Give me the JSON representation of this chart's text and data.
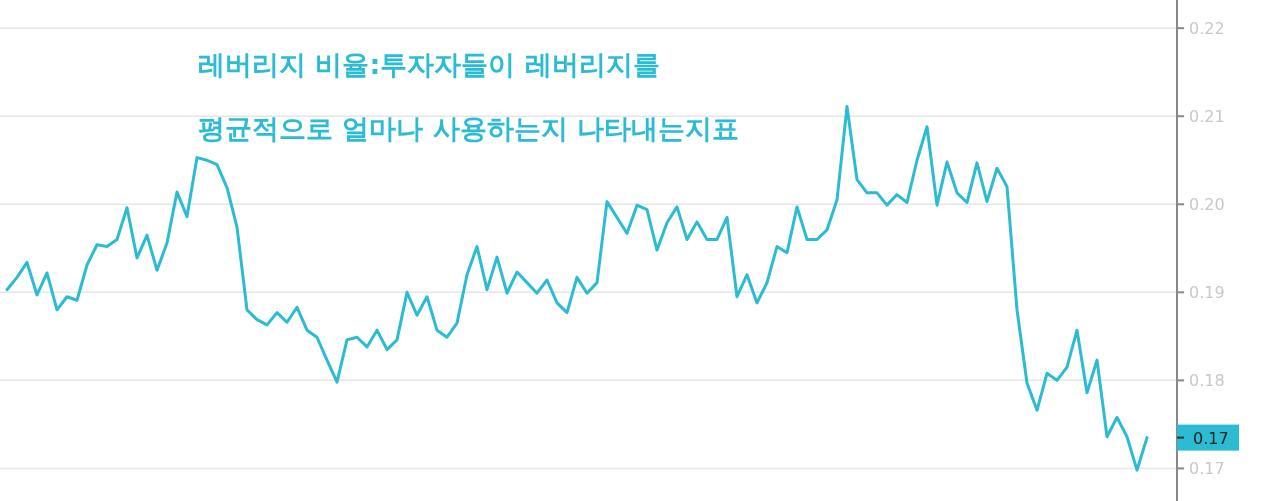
{
  "chart_data": {
    "type": "line",
    "title": "레버리지 비율:투자자들이 레버리지를\n평균적으로 얼마나 사용하는지 나타내는지표",
    "ylim": [
      0.1663,
      0.2232
    ],
    "yticks": [
      0.17,
      0.18,
      0.19,
      {
        "value": 0.2,
        "label": "0.20"
      },
      0.21,
      0.22
    ],
    "grid": "y",
    "tick_labels": "y",
    "color": "#2bbcd4",
    "annotations": [
      "0.17"
    ],
    "categories": [
      null,
      null,
      null,
      null,
      null,
      null,
      null,
      null,
      null,
      null,
      null,
      null,
      null,
      null,
      null,
      null,
      null,
      null,
      null,
      null,
      null,
      null,
      null,
      null,
      null,
      null,
      null,
      null,
      null,
      null,
      null,
      null,
      null,
      null,
      null,
      null,
      null,
      null,
      null,
      null,
      null,
      null,
      null,
      null,
      null,
      null,
      null,
      null,
      null,
      null,
      null,
      null,
      null,
      null,
      null,
      null,
      null,
      null,
      null,
      null,
      null,
      null,
      null,
      null,
      null,
      null,
      null,
      null,
      null,
      null,
      null,
      null,
      null,
      null,
      null,
      null,
      null,
      null,
      null,
      null,
      null,
      null,
      null,
      null,
      null,
      null,
      null,
      null,
      null,
      null,
      null,
      null,
      null,
      null,
      null,
      null,
      null,
      null,
      null,
      null,
      null,
      null,
      null,
      null,
      null,
      null,
      null,
      null,
      null,
      null,
      null,
      null,
      null,
      null,
      null
    ],
    "values": [
      0.1903,
      0.1917,
      0.1934,
      0.1897,
      0.1922,
      0.188,
      0.1895,
      0.1891,
      0.1931,
      0.1954,
      0.1952,
      0.196,
      0.1996,
      0.1939,
      0.1965,
      0.1925,
      0.1956,
      0.2014,
      0.1986,
      0.2053,
      0.205,
      0.2045,
      0.2019,
      0.1974,
      0.188,
      0.1869,
      0.1863,
      0.1877,
      0.1866,
      0.1883,
      0.1857,
      0.1849,
      0.1823,
      0.1798,
      0.1846,
      0.1849,
      0.1838,
      0.1857,
      0.1835,
      0.1846,
      0.19,
      0.1874,
      0.1895,
      0.1857,
      0.1849,
      0.1865,
      0.192,
      0.1952,
      0.1903,
      0.194,
      0.1899,
      0.1923,
      0.1911,
      0.1899,
      0.1914,
      0.1888,
      0.1877,
      0.1917,
      0.1899,
      0.1911,
      0.2003,
      0.1985,
      0.1967,
      0.1999,
      0.1994,
      0.1948,
      0.1979,
      0.1997,
      0.196,
      0.198,
      0.196,
      0.196,
      0.1985,
      0.1895,
      0.192,
      0.1888,
      0.1911,
      0.1952,
      0.1945,
      0.1997,
      0.196,
      0.196,
      0.1971,
      0.2005,
      0.2111,
      0.2028,
      0.2013,
      0.2013,
      0.1999,
      0.2011,
      0.2002,
      0.205,
      0.2088,
      0.1999,
      0.2048,
      0.2013,
      0.2002,
      0.2047,
      0.2003,
      0.2041,
      0.202,
      0.188,
      0.1797,
      0.1766,
      0.1808,
      0.18,
      0.1815,
      0.1857,
      0.1786,
      0.1823,
      0.1736,
      0.1758,
      0.1736,
      0.1698,
      0.1735
    ]
  }
}
